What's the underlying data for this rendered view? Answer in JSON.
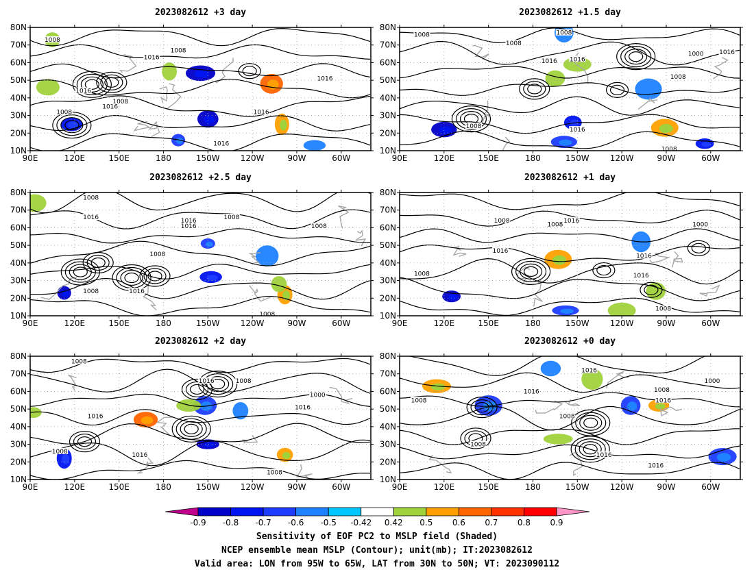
{
  "figure": {
    "caption_lines": [
      "Sensitivity of EOF PC2 to MSLP field (Shaded)",
      "NCEP ensemble mean MSLP (Contour); unit(mb); IT:2023082612",
      "Valid area: LON from 95W to 65W, LAT from 30N to 50N; VT: 2023090112"
    ]
  },
  "chart_data": [
    {
      "type": "heatmap",
      "title": "2023082612 +3 day",
      "x_ticks": [
        "90E",
        "120E",
        "150E",
        "180",
        "150W",
        "120W",
        "90W",
        "60W"
      ],
      "y_ticks": [
        "10N",
        "20N",
        "30N",
        "40N",
        "50N",
        "60N",
        "70N",
        "80N"
      ],
      "xlim_lon_east": [
        90,
        320
      ],
      "ylim_lat": [
        10,
        80
      ],
      "grid": true,
      "contour_labels": [
        {
          "text": "1008",
          "lon": 105,
          "lat": 73
        },
        {
          "text": "1016",
          "lon": 172,
          "lat": 63
        },
        {
          "text": "1008",
          "lon": 190,
          "lat": 67
        },
        {
          "text": "1016",
          "lon": 126,
          "lat": 44
        },
        {
          "text": "1008",
          "lon": 151,
          "lat": 38
        },
        {
          "text": "1016",
          "lon": 144,
          "lat": 35
        },
        {
          "text": "1008",
          "lon": 113,
          "lat": 32
        },
        {
          "text": "1016",
          "lon": 219,
          "lat": 14
        },
        {
          "text": "1016",
          "lon": 246,
          "lat": 32
        },
        {
          "text": "1016",
          "lon": 289,
          "lat": 51
        }
      ],
      "shaded_regions": [
        {
          "lon": 210,
          "lat": 28,
          "value": -0.8
        },
        {
          "lon": 205,
          "lat": 54,
          "value": -0.8
        },
        {
          "lon": 118,
          "lat": 25,
          "value": -0.7
        },
        {
          "lon": 190,
          "lat": 16,
          "value": -0.6
        },
        {
          "lon": 282,
          "lat": 13,
          "value": -0.5
        },
        {
          "lon": 260,
          "lat": 25,
          "value": 0.6
        },
        {
          "lon": 253,
          "lat": 48,
          "value": 0.7
        },
        {
          "lon": 184,
          "lat": 55,
          "value": 0.5
        },
        {
          "lon": 102,
          "lat": 46,
          "value": 0.5
        },
        {
          "lon": 105,
          "lat": 73,
          "value": 0.5
        }
      ]
    },
    {
      "type": "heatmap",
      "title": "2023082612 +1.5 day",
      "x_ticks": [
        "90E",
        "120E",
        "150E",
        "180",
        "150W",
        "120W",
        "90W",
        "60W"
      ],
      "y_ticks": [
        "10N",
        "20N",
        "30N",
        "40N",
        "50N",
        "60N",
        "70N",
        "80N"
      ],
      "xlim_lon_east": [
        90,
        320
      ],
      "ylim_lat": [
        10,
        80
      ],
      "grid": true,
      "contour_labels": [
        {
          "text": "1008",
          "lon": 105,
          "lat": 76
        },
        {
          "text": "1008",
          "lon": 167,
          "lat": 71
        },
        {
          "text": "1008",
          "lon": 201,
          "lat": 77
        },
        {
          "text": "1016",
          "lon": 191,
          "lat": 61
        },
        {
          "text": "1016",
          "lon": 210,
          "lat": 62
        },
        {
          "text": "1000",
          "lon": 290,
          "lat": 65
        },
        {
          "text": "1016",
          "lon": 311,
          "lat": 66
        },
        {
          "text": "1008",
          "lon": 278,
          "lat": 52
        },
        {
          "text": "1008",
          "lon": 140,
          "lat": 24
        },
        {
          "text": "1016",
          "lon": 210,
          "lat": 22
        },
        {
          "text": "1008",
          "lon": 272,
          "lat": 11
        }
      ],
      "shaded_regions": [
        {
          "lon": 120,
          "lat": 22,
          "value": -0.8
        },
        {
          "lon": 207,
          "lat": 26,
          "value": -0.7
        },
        {
          "lon": 201,
          "lat": 15,
          "value": -0.6
        },
        {
          "lon": 296,
          "lat": 14,
          "value": -0.7
        },
        {
          "lon": 258,
          "lat": 45,
          "value": -0.5
        },
        {
          "lon": 201,
          "lat": 77,
          "value": -0.5
        },
        {
          "lon": 269,
          "lat": 23,
          "value": 0.6
        },
        {
          "lon": 195,
          "lat": 51,
          "value": 0.5
        },
        {
          "lon": 210,
          "lat": 59,
          "value": 0.5
        }
      ]
    },
    {
      "type": "heatmap",
      "title": "2023082612 +2.5 day",
      "x_ticks": [
        "90E",
        "120E",
        "150E",
        "180",
        "150W",
        "120W",
        "90W",
        "60W"
      ],
      "y_ticks": [
        "10N",
        "20N",
        "30N",
        "40N",
        "50N",
        "60N",
        "70N",
        "80N"
      ],
      "xlim_lon_east": [
        90,
        320
      ],
      "ylim_lat": [
        10,
        80
      ],
      "grid": true,
      "contour_labels": [
        {
          "text": "1008",
          "lon": 131,
          "lat": 77
        },
        {
          "text": "1016",
          "lon": 131,
          "lat": 66
        },
        {
          "text": "1016",
          "lon": 197,
          "lat": 64
        },
        {
          "text": "1016",
          "lon": 197,
          "lat": 61
        },
        {
          "text": "1008",
          "lon": 226,
          "lat": 66
        },
        {
          "text": "1008",
          "lon": 285,
          "lat": 61
        },
        {
          "text": "1008",
          "lon": 176,
          "lat": 45
        },
        {
          "text": "1008",
          "lon": 131,
          "lat": 24
        },
        {
          "text": "1016",
          "lon": 162,
          "lat": 24
        },
        {
          "text": "1008",
          "lon": 250,
          "lat": 11
        }
      ],
      "shaded_regions": [
        {
          "lon": 113,
          "lat": 23,
          "value": -0.8
        },
        {
          "lon": 212,
          "lat": 32,
          "value": -0.7
        },
        {
          "lon": 210,
          "lat": 51,
          "value": -0.6
        },
        {
          "lon": 250,
          "lat": 44,
          "value": -0.5
        },
        {
          "lon": 262,
          "lat": 22,
          "value": 0.6
        },
        {
          "lon": 93,
          "lat": 74,
          "value": 0.5
        },
        {
          "lon": 258,
          "lat": 28,
          "value": 0.5
        }
      ]
    },
    {
      "type": "heatmap",
      "title": "2023082612 +1 day",
      "x_ticks": [
        "90E",
        "120E",
        "150E",
        "180",
        "150W",
        "120W",
        "90W",
        "60W"
      ],
      "y_ticks": [
        "10N",
        "20N",
        "30N",
        "40N",
        "50N",
        "60N",
        "70N",
        "80N"
      ],
      "xlim_lon_east": [
        90,
        320
      ],
      "ylim_lat": [
        10,
        80
      ],
      "grid": true,
      "contour_labels": [
        {
          "text": "1008",
          "lon": 195,
          "lat": 62
        },
        {
          "text": "1016",
          "lon": 206,
          "lat": 64
        },
        {
          "text": "1008",
          "lon": 159,
          "lat": 64
        },
        {
          "text": "1016",
          "lon": 158,
          "lat": 47
        },
        {
          "text": "1008",
          "lon": 105,
          "lat": 34
        },
        {
          "text": "1016",
          "lon": 255,
          "lat": 44
        },
        {
          "text": "1016",
          "lon": 253,
          "lat": 33
        },
        {
          "text": "1008",
          "lon": 268,
          "lat": 14
        },
        {
          "text": "1000",
          "lon": 293,
          "lat": 62
        }
      ],
      "shaded_regions": [
        {
          "lon": 125,
          "lat": 21,
          "value": -0.8
        },
        {
          "lon": 202,
          "lat": 13,
          "value": -0.6
        },
        {
          "lon": 253,
          "lat": 52,
          "value": -0.5
        },
        {
          "lon": 197,
          "lat": 42,
          "value": 0.6
        },
        {
          "lon": 263,
          "lat": 24,
          "value": 0.5
        },
        {
          "lon": 240,
          "lat": 13,
          "value": 0.5
        }
      ]
    },
    {
      "type": "heatmap",
      "title": "2023082612 +2 day",
      "x_ticks": [
        "90E",
        "120E",
        "150E",
        "180",
        "150W",
        "120W",
        "90W",
        "60W"
      ],
      "y_ticks": [
        "10N",
        "20N",
        "30N",
        "40N",
        "50N",
        "60N",
        "70N",
        "80N"
      ],
      "xlim_lon_east": [
        90,
        320
      ],
      "ylim_lat": [
        10,
        80
      ],
      "grid": true,
      "contour_labels": [
        {
          "text": "1008",
          "lon": 123,
          "lat": 77
        },
        {
          "text": "1016",
          "lon": 209,
          "lat": 66
        },
        {
          "text": "1008",
          "lon": 234,
          "lat": 66
        },
        {
          "text": "1000",
          "lon": 284,
          "lat": 58
        },
        {
          "text": "1016",
          "lon": 274,
          "lat": 51
        },
        {
          "text": "1016",
          "lon": 134,
          "lat": 46
        },
        {
          "text": "1008",
          "lon": 110,
          "lat": 26
        },
        {
          "text": "1016",
          "lon": 164,
          "lat": 24
        },
        {
          "text": "1008",
          "lon": 255,
          "lat": 14
        }
      ],
      "shaded_regions": [
        {
          "lon": 210,
          "lat": 30,
          "value": -0.8
        },
        {
          "lon": 113,
          "lat": 22,
          "value": -0.7
        },
        {
          "lon": 208,
          "lat": 52,
          "value": -0.6
        },
        {
          "lon": 232,
          "lat": 49,
          "value": -0.5
        },
        {
          "lon": 168,
          "lat": 44,
          "value": 0.7
        },
        {
          "lon": 262,
          "lat": 24,
          "value": 0.6
        },
        {
          "lon": 197,
          "lat": 52,
          "value": 0.5
        },
        {
          "lon": 92,
          "lat": 48,
          "value": 0.5
        }
      ]
    },
    {
      "type": "heatmap",
      "title": "2023082612 +0 day",
      "x_ticks": [
        "90E",
        "120E",
        "150E",
        "180",
        "150W",
        "120W",
        "90W",
        "60W"
      ],
      "y_ticks": [
        "10N",
        "20N",
        "30N",
        "40N",
        "50N",
        "60N",
        "70N",
        "80N"
      ],
      "xlim_lon_east": [
        90,
        320
      ],
      "ylim_lat": [
        10,
        80
      ],
      "grid": true,
      "contour_labels": [
        {
          "text": "1016",
          "lon": 218,
          "lat": 72
        },
        {
          "text": "1016",
          "lon": 179,
          "lat": 60
        },
        {
          "text": "1008",
          "lon": 203,
          "lat": 46
        },
        {
          "text": "1008",
          "lon": 103,
          "lat": 55
        },
        {
          "text": "1008",
          "lon": 143,
          "lat": 30
        },
        {
          "text": "1008",
          "lon": 267,
          "lat": 61
        },
        {
          "text": "1016",
          "lon": 268,
          "lat": 55
        },
        {
          "text": "1000",
          "lon": 301,
          "lat": 66
        },
        {
          "text": "1016",
          "lon": 228,
          "lat": 24
        },
        {
          "text": "1016",
          "lon": 263,
          "lat": 18
        }
      ],
      "shaded_regions": [
        {
          "lon": 150,
          "lat": 52,
          "value": -0.6
        },
        {
          "lon": 246,
          "lat": 52,
          "value": -0.6
        },
        {
          "lon": 308,
          "lat": 23,
          "value": -0.6
        },
        {
          "lon": 192,
          "lat": 73,
          "value": -0.5
        },
        {
          "lon": 115,
          "lat": 63,
          "value": 0.6
        },
        {
          "lon": 265,
          "lat": 52,
          "value": 0.6
        },
        {
          "lon": 197,
          "lat": 33,
          "value": 0.5
        },
        {
          "lon": 220,
          "lat": 67,
          "value": 0.5
        }
      ]
    }
  ],
  "colorbar": {
    "tick_labels": [
      "-0.9",
      "-0.8",
      "-0.7",
      "-0.6",
      "-0.5",
      "-0.42",
      "0.42",
      "0.5",
      "0.6",
      "0.7",
      "0.8",
      "0.9"
    ],
    "colors": [
      "#c0008c",
      "#0000c8",
      "#0014f0",
      "#1e3cff",
      "#1e82ff",
      "#00c8ff",
      "#ffffff",
      "#a0d23c",
      "#ffa000",
      "#ff6400",
      "#ff3200",
      "#ff0000",
      "#ff96c8"
    ]
  },
  "style": {
    "contour_color": "#000000",
    "coast_color": "#a8a8a8",
    "grid_color": "#9a9a9a"
  }
}
